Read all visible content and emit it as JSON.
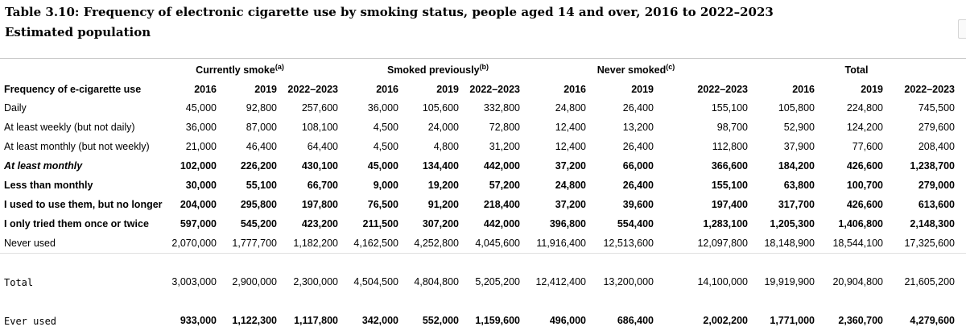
{
  "title": {
    "line1": "Table 3.10: Frequency of electronic cigarette use by smoking status, people aged 14 and over, 2016 to 2022–2023",
    "line2": "Estimated population"
  },
  "groups": [
    {
      "label": "Currently smoke",
      "note": "(a)"
    },
    {
      "label": "Smoked previously",
      "note": "(b)"
    },
    {
      "label": "Never smoked",
      "note": "(c)"
    },
    {
      "label": "Total",
      "note": ""
    }
  ],
  "header": {
    "row_label": "Frequency of e-cigarette use",
    "years": [
      "2016",
      "2019",
      "2022–2023",
      "2016",
      "2019",
      "2022–2023",
      "2016",
      "2019",
      "2022–2023",
      "2016",
      "2019",
      "2022–2023"
    ]
  },
  "rows": [
    {
      "label": "Daily",
      "values": [
        "45,000",
        "92,800",
        "257,600",
        "36,000",
        "105,600",
        "332,800",
        "24,800",
        "26,400",
        "155,100",
        "105,800",
        "224,800",
        "745,500"
      ]
    },
    {
      "label": "At least weekly (but not daily)",
      "values": [
        "36,000",
        "87,000",
        "108,100",
        "4,500",
        "24,000",
        "72,800",
        "12,400",
        "13,200",
        "98,700",
        "52,900",
        "124,200",
        "279,600"
      ]
    },
    {
      "label": "At least monthly (but not weekly)",
      "values": [
        "21,000",
        "46,400",
        "64,400",
        "4,500",
        "4,800",
        "31,200",
        "12,400",
        "26,400",
        "112,800",
        "37,900",
        "77,600",
        "208,400"
      ]
    },
    {
      "label": "At least monthly",
      "values": [
        "102,000",
        "226,200",
        "430,100",
        "45,000",
        "134,400",
        "442,000",
        "37,200",
        "66,000",
        "366,600",
        "184,200",
        "426,600",
        "1,238,700"
      ]
    },
    {
      "label": "Less than monthly",
      "values": [
        "30,000",
        "55,100",
        "66,700",
        "9,000",
        "19,200",
        "57,200",
        "24,800",
        "26,400",
        "155,100",
        "63,800",
        "100,700",
        "279,000"
      ]
    },
    {
      "label": "I used to use them, but no longer use them",
      "values": [
        "204,000",
        "295,800",
        "197,800",
        "76,500",
        "91,200",
        "218,400",
        "37,200",
        "39,600",
        "197,400",
        "317,700",
        "426,600",
        "613,600"
      ]
    },
    {
      "label": "I only tried them once or twice",
      "values": [
        "597,000",
        "545,200",
        "423,200",
        "211,500",
        "307,200",
        "442,000",
        "396,800",
        "554,400",
        "1,283,100",
        "1,205,300",
        "1,406,800",
        "2,148,300"
      ]
    },
    {
      "label": "Never used",
      "values": [
        "2,070,000",
        "1,777,700",
        "1,182,200",
        "4,162,500",
        "4,252,800",
        "4,045,600",
        "11,916,400",
        "12,513,600",
        "12,097,800",
        "18,148,900",
        "18,544,100",
        "17,325,600"
      ]
    }
  ],
  "total_row": {
    "label": "Total",
    "values": [
      "3,003,000",
      "2,900,000",
      "2,300,000",
      "4,504,500",
      "4,804,800",
      "5,205,200",
      "12,412,400",
      "13,200,000",
      "14,100,000",
      "19,919,900",
      "20,904,800",
      "21,605,200"
    ]
  },
  "ever_row": {
    "label": "Ever used",
    "values": [
      "933,000",
      "1,122,300",
      "1,117,800",
      "342,000",
      "552,000",
      "1,159,600",
      "496,000",
      "686,400",
      "2,002,200",
      "1,771,000",
      "2,360,700",
      "4,279,600"
    ]
  }
}
